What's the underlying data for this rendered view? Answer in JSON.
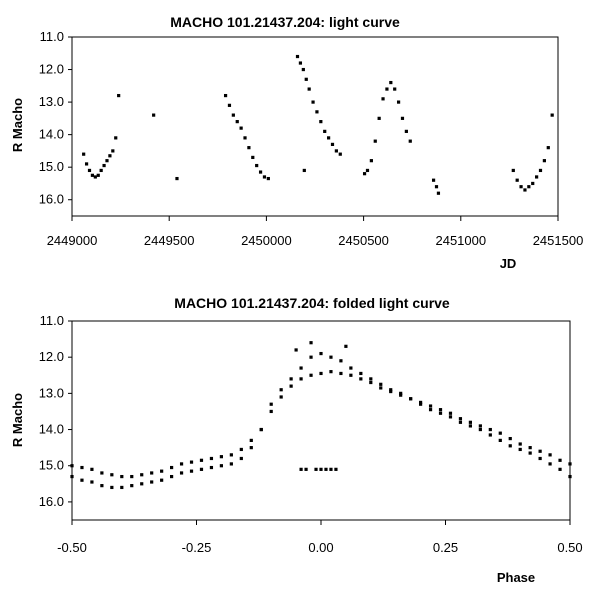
{
  "chart_data": [
    {
      "type": "scatter",
      "title": "MACHO 101.21437.204: light curve",
      "xlabel": "JD",
      "ylabel": "R Macho",
      "xlim": [
        2449000,
        2451500
      ],
      "ylim": [
        16.5,
        11.0
      ],
      "y_inverted": true,
      "xticks": [
        2449000,
        2449500,
        2450000,
        2450500,
        2451000,
        2451500
      ],
      "xtick_labels": [
        "2449000",
        "2449500",
        "2450000",
        "2450500",
        "2451000",
        "2451500"
      ],
      "yticks": [
        11.0,
        12.0,
        13.0,
        14.0,
        15.0,
        16.0
      ],
      "ytick_labels": [
        "11.0",
        "12.0",
        "13.0",
        "14.0",
        "15.0",
        "16.0"
      ],
      "grid": false,
      "marker_color": "#000000",
      "series": [
        {
          "x": [
            2449060,
            2449075,
            2449090,
            2449105,
            2449120,
            2449135,
            2449150,
            2449165,
            2449180,
            2449195,
            2449210,
            2449225,
            2449240,
            2449420,
            2449540,
            2449790,
            2449810,
            2449830,
            2449850,
            2449870,
            2449890,
            2449910,
            2449930,
            2449950,
            2449970,
            2449990,
            2450010,
            2450160,
            2450175,
            2450190,
            2450205,
            2450220,
            2450240,
            2450260,
            2450280,
            2450300,
            2450320,
            2450340,
            2450360,
            2450380,
            2450195,
            2450505,
            2450520,
            2450540,
            2450560,
            2450580,
            2450600,
            2450620,
            2450640,
            2450660,
            2450680,
            2450700,
            2450720,
            2450740,
            2450860,
            2450875,
            2450885,
            2451270,
            2451290,
            2451310,
            2451330,
            2451350,
            2451370,
            2451390,
            2451410,
            2451430,
            2451450,
            2451470
          ],
          "y": [
            14.6,
            14.9,
            15.1,
            15.25,
            15.3,
            15.25,
            15.1,
            14.95,
            14.8,
            14.65,
            14.5,
            14.1,
            12.8,
            13.4,
            15.35,
            12.8,
            13.1,
            13.4,
            13.6,
            13.8,
            14.1,
            14.4,
            14.7,
            14.95,
            15.15,
            15.3,
            15.35,
            11.6,
            11.8,
            12.0,
            12.3,
            12.6,
            13.0,
            13.3,
            13.6,
            13.9,
            14.1,
            14.3,
            14.5,
            14.6,
            15.1,
            15.2,
            15.1,
            14.8,
            14.2,
            13.5,
            12.9,
            12.6,
            12.4,
            12.6,
            13.0,
            13.5,
            13.9,
            14.2,
            15.4,
            15.6,
            15.8,
            15.1,
            15.4,
            15.6,
            15.7,
            15.6,
            15.5,
            15.3,
            15.1,
            14.8,
            14.4,
            13.4
          ]
        }
      ]
    },
    {
      "type": "scatter",
      "title": "MACHO 101.21437.204: folded light curve",
      "xlabel": "Phase",
      "ylabel": "R Macho",
      "xlim": [
        -0.5,
        0.5
      ],
      "ylim": [
        16.5,
        11.0
      ],
      "y_inverted": true,
      "xticks": [
        -0.5,
        -0.25,
        0.0,
        0.25,
        0.5
      ],
      "xtick_labels": [
        "-0.50",
        "-0.25",
        "0.00",
        "0.25",
        "0.50"
      ],
      "yticks": [
        11.0,
        12.0,
        13.0,
        14.0,
        15.0,
        16.0
      ],
      "ytick_labels": [
        "11.0",
        "12.0",
        "13.0",
        "14.0",
        "15.0",
        "16.0"
      ],
      "grid": false,
      "marker_color": "#000000",
      "series": [
        {
          "x": [
            -0.5,
            -0.48,
            -0.46,
            -0.44,
            -0.42,
            -0.4,
            -0.38,
            -0.36,
            -0.34,
            -0.32,
            -0.3,
            -0.28,
            -0.26,
            -0.24,
            -0.22,
            -0.2,
            -0.18,
            -0.16,
            -0.14,
            -0.12,
            -0.1,
            -0.08,
            -0.06,
            -0.04,
            -0.02,
            0.0,
            0.02,
            0.04,
            0.06,
            0.08,
            0.1,
            0.12,
            0.14,
            0.16,
            0.18,
            0.2,
            0.22,
            0.24,
            0.26,
            0.28,
            0.3,
            0.32,
            0.34,
            0.36,
            0.38,
            0.4,
            0.42,
            0.44,
            0.46,
            0.48,
            0.5
          ],
          "y": [
            15.0,
            15.05,
            15.1,
            15.2,
            15.25,
            15.3,
            15.3,
            15.25,
            15.2,
            15.15,
            15.05,
            14.95,
            14.9,
            14.85,
            14.8,
            14.75,
            14.7,
            14.55,
            14.3,
            14.0,
            13.5,
            13.1,
            12.8,
            12.6,
            12.5,
            12.45,
            12.4,
            12.45,
            12.5,
            12.6,
            12.7,
            12.85,
            12.95,
            13.05,
            13.15,
            13.25,
            13.35,
            13.45,
            13.55,
            13.7,
            13.8,
            13.9,
            14.0,
            14.1,
            14.25,
            14.4,
            14.5,
            14.6,
            14.7,
            14.85,
            14.95
          ]
        },
        {
          "x": [
            -0.5,
            -0.48,
            -0.46,
            -0.44,
            -0.42,
            -0.4,
            -0.38,
            -0.36,
            -0.34,
            -0.32,
            -0.3,
            -0.28,
            -0.26,
            -0.24,
            -0.22,
            -0.2,
            -0.18,
            -0.16,
            -0.14,
            -0.12,
            -0.1,
            -0.08,
            -0.06,
            -0.04,
            -0.02,
            0.0,
            0.02,
            0.04,
            0.06,
            0.08,
            0.1,
            0.12,
            0.14,
            0.16,
            0.18,
            0.2,
            0.22,
            0.24,
            0.26,
            0.28,
            0.3,
            0.32,
            0.34,
            0.36,
            0.38,
            0.4,
            0.42,
            0.44,
            0.46,
            0.48,
            0.5
          ],
          "y": [
            15.3,
            15.4,
            15.45,
            15.55,
            15.6,
            15.6,
            15.55,
            15.5,
            15.45,
            15.4,
            15.3,
            15.2,
            15.15,
            15.1,
            15.05,
            15.0,
            14.95,
            14.8,
            14.5,
            14.0,
            13.3,
            12.9,
            12.6,
            12.3,
            12.0,
            11.9,
            12.0,
            12.1,
            12.3,
            12.45,
            12.6,
            12.75,
            12.9,
            13.0,
            13.15,
            13.3,
            13.45,
            13.55,
            13.65,
            13.8,
            13.9,
            14.0,
            14.15,
            14.3,
            14.45,
            14.55,
            14.65,
            14.8,
            14.95,
            15.1,
            15.3
          ]
        },
        {
          "x": [
            -0.04,
            -0.03,
            -0.01,
            0.0,
            0.01,
            0.02,
            0.03,
            -0.02,
            -0.05,
            0.05
          ],
          "y": [
            15.1,
            15.1,
            15.1,
            15.1,
            15.1,
            15.1,
            15.1,
            11.6,
            11.8,
            11.7
          ]
        }
      ]
    }
  ]
}
